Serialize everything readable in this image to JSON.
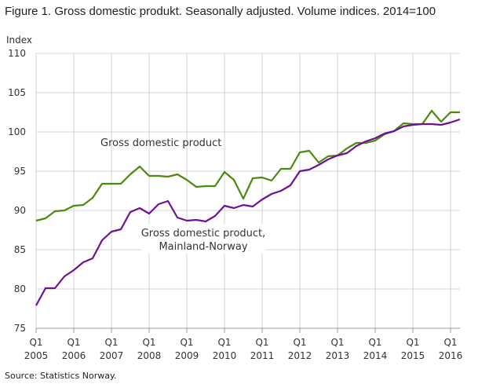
{
  "title": "Figure 1. Gross domestic produkt. Seasonally adjusted. Volume indices. 2014=100",
  "source": "Source: Statistics Norway.",
  "chart_data": {
    "type": "line",
    "title": "Figure 1. Gross domestic produkt. Seasonally adjusted. Volume indices. 2014=100",
    "ylabel": "Index",
    "xlabel": "",
    "ylim": [
      75,
      110
    ],
    "yticks": [
      75,
      80,
      85,
      90,
      95,
      100,
      105,
      110
    ],
    "grid": true,
    "x_start": "2005 Q1",
    "x_end": "2016 Q2",
    "xtick_labels": [
      {
        "q": "Q1",
        "year": "2005"
      },
      {
        "q": "Q1",
        "year": "2006"
      },
      {
        "q": "Q1",
        "year": "2007"
      },
      {
        "q": "Q1",
        "year": "2008"
      },
      {
        "q": "Q1",
        "year": "2009"
      },
      {
        "q": "Q1",
        "year": "2010"
      },
      {
        "q": "Q1",
        "year": "2011"
      },
      {
        "q": "Q1",
        "year": "2012"
      },
      {
        "q": "Q1",
        "year": "2013"
      },
      {
        "q": "Q1",
        "year": "2014"
      },
      {
        "q": "Q1",
        "year": "2015"
      },
      {
        "q": "Q1",
        "year": "2016"
      }
    ],
    "series": [
      {
        "name": "Gross domestic product",
        "label_lines": [
          "Gross domestic product"
        ],
        "color": "#4b8a0d",
        "values": [
          88.7,
          89.0,
          89.9,
          90.0,
          90.6,
          90.7,
          91.6,
          93.4,
          93.4,
          93.4,
          94.6,
          95.6,
          94.4,
          94.4,
          94.3,
          94.6,
          93.9,
          93.0,
          93.1,
          93.1,
          94.9,
          93.9,
          91.5,
          94.1,
          94.2,
          93.8,
          95.3,
          95.3,
          97.4,
          97.6,
          96.1,
          96.9,
          97.0,
          97.9,
          98.6,
          98.6,
          98.9,
          99.7,
          100.1,
          101.1,
          101.0,
          101.0,
          102.7,
          101.3,
          102.5,
          102.5
        ]
      },
      {
        "name": "Gross domestic product, Mainland-Norway",
        "label_lines": [
          "Gross domestic product,",
          "Mainland-Norway"
        ],
        "color": "#6e1196",
        "values": [
          77.9,
          80.1,
          80.1,
          81.6,
          82.4,
          83.4,
          83.9,
          86.2,
          87.3,
          87.6,
          89.8,
          90.3,
          89.6,
          90.8,
          91.2,
          89.1,
          88.7,
          88.8,
          88.6,
          89.3,
          90.6,
          90.3,
          90.7,
          90.5,
          91.4,
          92.1,
          92.5,
          93.2,
          95.0,
          95.2,
          95.8,
          96.5,
          97.0,
          97.3,
          98.2,
          98.8,
          99.2,
          99.8,
          100.1,
          100.7,
          100.9,
          101.0,
          101.0,
          100.9,
          101.2,
          101.6
        ]
      }
    ]
  }
}
